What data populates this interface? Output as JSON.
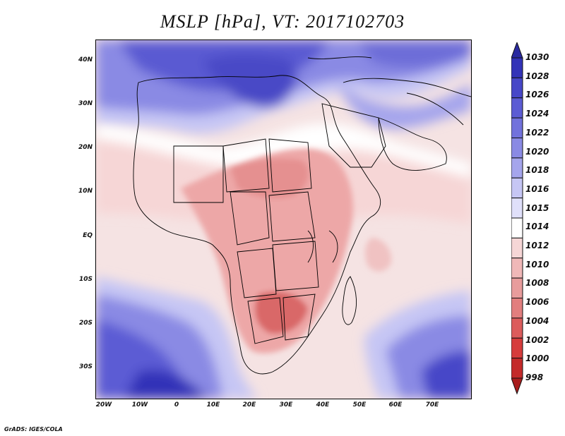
{
  "title": "MSLP [hPa], VT: 2017102703",
  "credit": "GrADS: IGES/COLA",
  "y_axis_labels": [
    "40N",
    "30N",
    "20N",
    "10N",
    "EQ",
    "10S",
    "20S",
    "30S"
  ],
  "x_axis_labels": [
    "20W",
    "10W",
    "0",
    "10E",
    "20E",
    "30E",
    "40E",
    "50E",
    "60E",
    "70E"
  ],
  "colorbar": {
    "levels": [
      "1030",
      "1028",
      "1026",
      "1024",
      "1022",
      "1020",
      "1018",
      "1016",
      "1015",
      "1014",
      "1012",
      "1010",
      "1008",
      "1006",
      "1004",
      "1002",
      "1000",
      "998"
    ],
    "colors": [
      "#2a2aa0",
      "#3333b8",
      "#4747c8",
      "#5c5cd4",
      "#7272dc",
      "#8a8ae4",
      "#a5a5ec",
      "#c6c6f4",
      "#e0e0fa",
      "#ffffff",
      "#f6d6d6",
      "#f0b8b8",
      "#e89c9c",
      "#e27e7e",
      "#dc5c5c",
      "#d63c3c",
      "#c42a2a",
      "#a81d1d"
    ]
  },
  "fields": {
    "ocean_color": "#f5e3e3",
    "north_high_color": "#5a5ad2",
    "south_high_color": "#3a3ab8",
    "land_low_color": "#eda7a7",
    "deep_low_color": "#d96767"
  }
}
